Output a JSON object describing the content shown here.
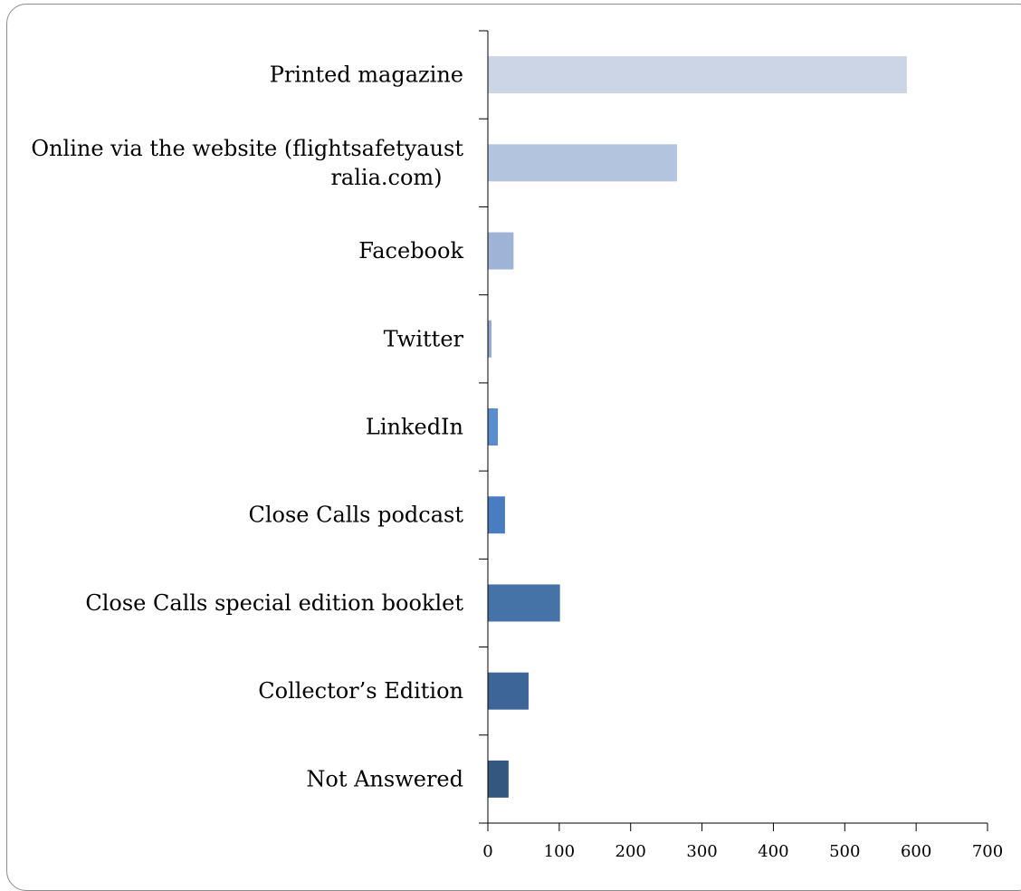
{
  "chart_data": {
    "type": "bar",
    "orientation": "horizontal",
    "categories": [
      "Printed magazine",
      "Online via the website (flightsafetyaustralia.com)",
      "Facebook",
      "Twitter",
      "LinkedIn",
      "Close Calls podcast",
      "Close Calls special edition booklet",
      "Collector’s Edition",
      "Not Answered"
    ],
    "category_label_lines": [
      [
        "Printed magazine"
      ],
      [
        "Online via the website (flightsafetyaust",
        "ralia.com)"
      ],
      [
        "Facebook"
      ],
      [
        "Twitter"
      ],
      [
        "LinkedIn"
      ],
      [
        "Close Calls podcast"
      ],
      [
        "Close Calls special edition booklet"
      ],
      [
        "Collector’s Edition"
      ],
      [
        "Not Answered"
      ]
    ],
    "values": [
      587,
      265,
      36,
      5,
      14,
      24,
      101,
      57,
      29
    ],
    "bar_colors": [
      "#cbd5e6",
      "#b3c4df",
      "#9fb3d6",
      "#8eaad5",
      "#5a8dcb",
      "#4a7dbf",
      "#4573a8",
      "#3e6597",
      "#34577f"
    ],
    "xlim": [
      0,
      700
    ],
    "xticks": [
      0,
      100,
      200,
      300,
      400,
      500,
      600,
      700
    ],
    "title": "",
    "xlabel": "",
    "ylabel": "",
    "grid": false,
    "legend": "none"
  }
}
